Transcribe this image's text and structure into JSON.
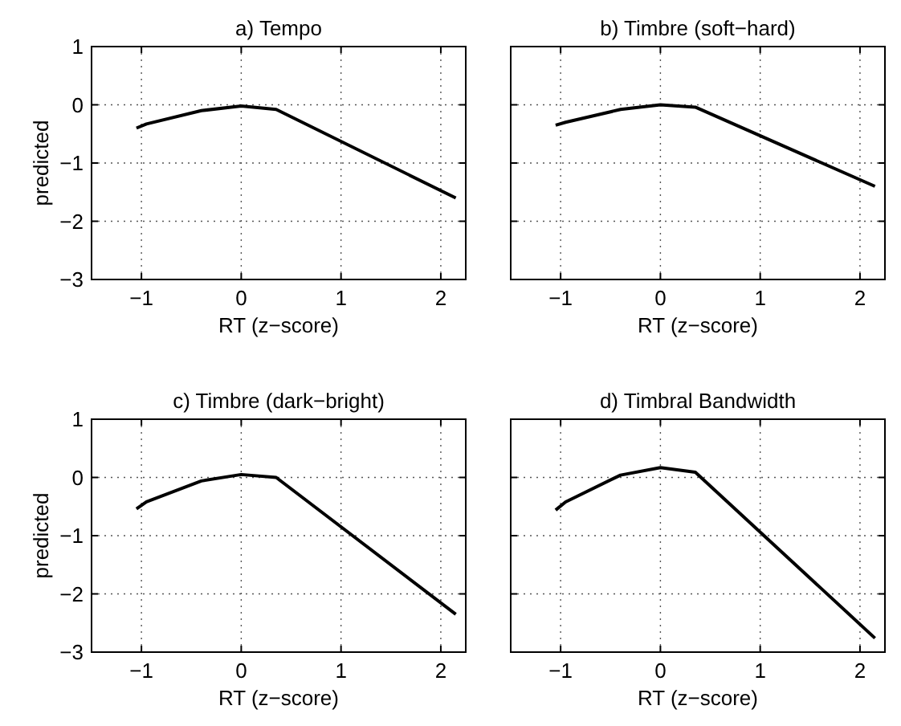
{
  "chart_data": [
    {
      "type": "line",
      "title": "a) Tempo",
      "xlabel": "RT (z−score)",
      "ylabel": "predicted",
      "x": [
        -1.05,
        -0.95,
        -0.4,
        0,
        0.35,
        2.15
      ],
      "series": [
        {
          "color": "#000000",
          "values": [
            -0.4,
            -0.33,
            -0.1,
            -0.02,
            -0.08,
            -1.6
          ]
        }
      ],
      "xlim": [
        -1.5,
        2.25
      ],
      "ylim": [
        -3,
        1
      ],
      "xticks": [
        -1,
        0,
        1,
        2
      ],
      "yticks": [
        -3,
        -2,
        -1,
        0,
        1
      ],
      "grid": true
    },
    {
      "type": "line",
      "title": "b) Timbre (soft−hard)",
      "xlabel": "RT (z−score)",
      "x": [
        -1.05,
        -0.95,
        -0.4,
        0,
        0.35,
        2.15
      ],
      "series": [
        {
          "color": "#000000",
          "values": [
            -0.35,
            -0.3,
            -0.08,
            0,
            -0.04,
            -1.4
          ]
        }
      ],
      "xlim": [
        -1.5,
        2.25
      ],
      "ylim": [
        -3,
        1
      ],
      "xticks": [
        -1,
        0,
        1,
        2
      ],
      "yticks": [
        -3,
        -2,
        -1,
        0,
        1
      ],
      "grid": true,
      "tick_labels": "x"
    },
    {
      "type": "line",
      "title": "c) Timbre (dark−bright)",
      "xlabel": "RT (z−score)",
      "ylabel": "predicted",
      "x": [
        -1.05,
        -0.95,
        -0.4,
        0,
        0.35,
        2.15
      ],
      "series": [
        {
          "color": "#000000",
          "values": [
            -0.54,
            -0.42,
            -0.06,
            0.05,
            0,
            -2.35
          ]
        }
      ],
      "xlim": [
        -1.5,
        2.25
      ],
      "ylim": [
        -3,
        1
      ],
      "xticks": [
        -1,
        0,
        1,
        2
      ],
      "yticks": [
        -3,
        -2,
        -1,
        0,
        1
      ],
      "grid": true
    },
    {
      "type": "line",
      "title": "d) Timbral Bandwidth",
      "xlabel": "RT (z−score)",
      "x": [
        -1.05,
        -0.95,
        -0.4,
        0,
        0.35,
        2.15
      ],
      "series": [
        {
          "color": "#000000",
          "values": [
            -0.56,
            -0.42,
            0.04,
            0.17,
            0.09,
            -2.76
          ]
        }
      ],
      "xlim": [
        -1.5,
        2.25
      ],
      "ylim": [
        -3,
        1
      ],
      "xticks": [
        -1,
        0,
        1,
        2
      ],
      "yticks": [
        -3,
        -2,
        -1,
        0,
        1
      ],
      "grid": true,
      "tick_labels": "x"
    }
  ]
}
